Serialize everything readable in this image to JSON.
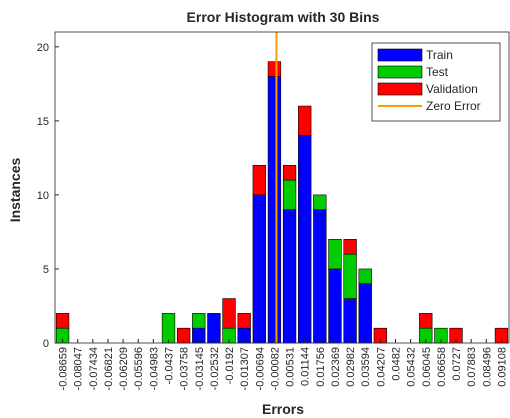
{
  "chart_data": {
    "type": "bar",
    "stacked": true,
    "title": "Error Histogram with 30 Bins",
    "x_label": "Errors",
    "y_label": "Instances",
    "categories": [
      -0.08659,
      -0.08047,
      -0.07434,
      -0.06821,
      -0.06209,
      -0.05596,
      -0.04983,
      -0.0437,
      -0.03758,
      -0.03145,
      -0.02532,
      -0.0192,
      -0.01307,
      -0.00694,
      -0.00082,
      0.00531,
      0.01144,
      0.01756,
      0.02369,
      0.02982,
      0.03594,
      0.04207,
      0.0482,
      0.05432,
      0.06045,
      0.06658,
      0.0727,
      0.07883,
      0.08496,
      0.09108
    ],
    "series": [
      {
        "name": "Train",
        "color": "#0000ff",
        "values": [
          0,
          0,
          0,
          0,
          0,
          0,
          0,
          0,
          0,
          1,
          2,
          0,
          1,
          10,
          18,
          9,
          14,
          9,
          5,
          3,
          4,
          0,
          0,
          0,
          0,
          0,
          0,
          0,
          0,
          0
        ]
      },
      {
        "name": "Test",
        "color": "#00cc00",
        "values": [
          1,
          0,
          0,
          0,
          0,
          0,
          0,
          2,
          0,
          1,
          0,
          1,
          0,
          0,
          0,
          2,
          0,
          1,
          2,
          3,
          1,
          0,
          0,
          0,
          1,
          1,
          0,
          0,
          0,
          0
        ]
      },
      {
        "name": "Validation",
        "color": "#ff0000",
        "values": [
          1,
          0,
          0,
          0,
          0,
          0,
          0,
          0,
          1,
          0,
          0,
          2,
          1,
          2,
          1,
          1,
          2,
          0,
          0,
          1,
          0,
          1,
          0,
          0,
          1,
          0,
          1,
          0,
          0,
          1
        ]
      }
    ],
    "zero_error": {
      "name": "Zero Error",
      "color": "#ff9900",
      "x": 0
    },
    "ylim": [
      0,
      21
    ],
    "yticks": [
      0,
      5,
      10,
      15,
      20
    ],
    "legend": "top-right"
  }
}
